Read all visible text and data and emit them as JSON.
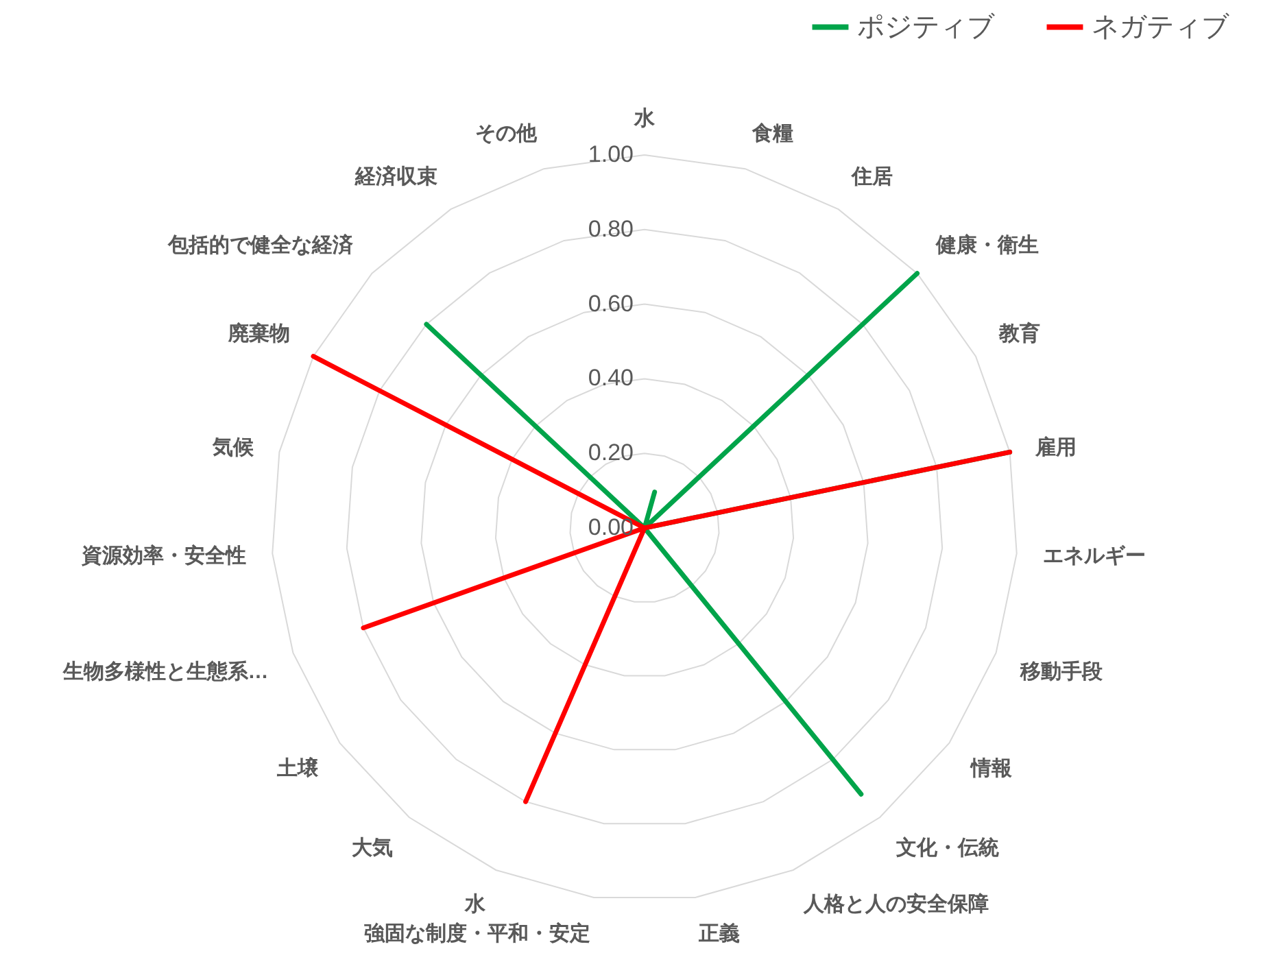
{
  "chart_data": {
    "type": "radar",
    "categories": [
      "水",
      "食糧",
      "住居",
      "健康・衛生",
      "教育",
      "雇用",
      "エネルギー",
      "移動手段",
      "情報",
      "文化・伝統",
      "人格と人の安全保障",
      "正義",
      "強固な制度・平和・安定",
      "水",
      "大気",
      "土壌",
      "生物多様性と生態系…",
      "資源効率・安全性",
      "気候",
      "廃棄物",
      "包括的で健全な経済",
      "経済収束",
      "その他"
    ],
    "series": [
      {
        "name": "ポジティブ",
        "color": "#00a44a",
        "values": [
          0,
          0.1,
          0,
          1,
          0,
          1,
          0,
          0,
          0,
          0.92,
          0,
          0,
          0,
          0,
          0,
          0,
          0,
          0,
          0,
          0,
          0.8,
          0,
          0
        ]
      },
      {
        "name": "ネガティブ",
        "color": "#ff0000",
        "values": [
          0,
          0,
          0,
          0,
          0,
          1,
          0,
          0,
          0,
          0,
          0,
          0,
          0,
          0.8,
          0,
          0,
          0.8,
          0,
          0,
          1,
          0,
          0,
          0
        ]
      }
    ],
    "ylim": [
      0,
      1
    ],
    "yticks": [
      {
        "value": 0,
        "label": "0.00"
      },
      {
        "value": 0.2,
        "label": "0.20"
      },
      {
        "value": 0.4,
        "label": "0.40"
      },
      {
        "value": 0.6,
        "label": "0.60"
      },
      {
        "value": 0.8,
        "label": "0.80"
      },
      {
        "value": 1,
        "label": "1.00"
      }
    ],
    "grid": true,
    "legend": "top right",
    "line_style": "solid",
    "marker": "none"
  }
}
